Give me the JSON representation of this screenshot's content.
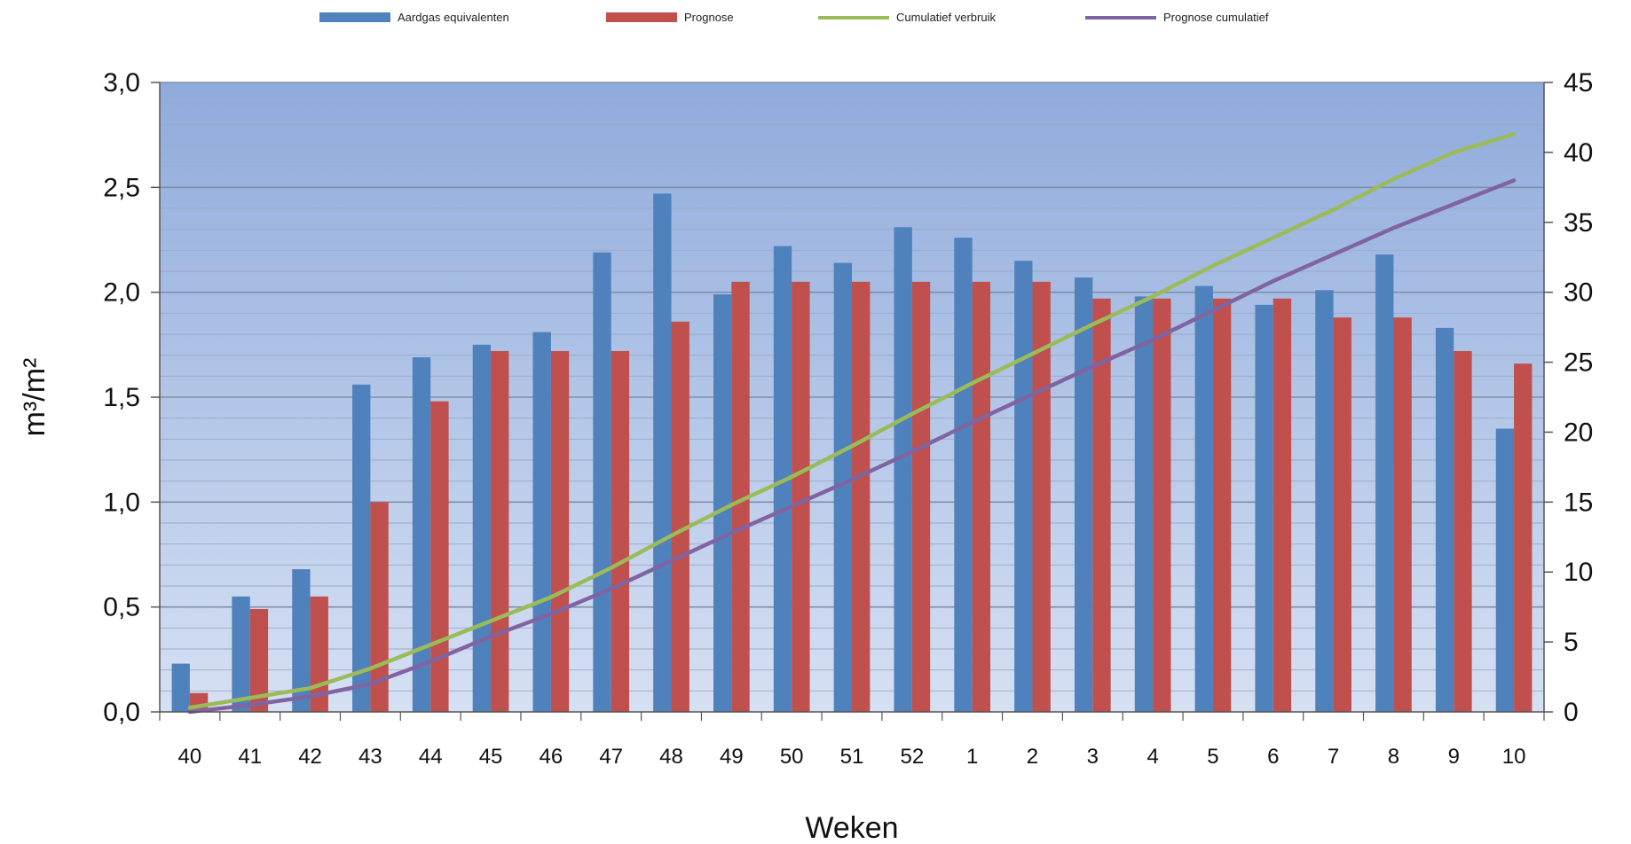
{
  "chart_data": {
    "type": "bar",
    "categories": [
      "40",
      "41",
      "42",
      "43",
      "44",
      "45",
      "46",
      "47",
      "48",
      "49",
      "50",
      "51",
      "52",
      "1",
      "2",
      "3",
      "4",
      "5",
      "6",
      "7",
      "8",
      "9",
      "10"
    ],
    "series": [
      {
        "name": "Aardgas equivalenten",
        "kind": "bar",
        "axis": "left",
        "color": "#4f81bd",
        "values": [
          0.23,
          0.55,
          0.68,
          1.56,
          1.69,
          1.75,
          1.81,
          2.19,
          2.47,
          1.99,
          2.22,
          2.14,
          2.31,
          2.26,
          2.15,
          2.07,
          1.98,
          2.03,
          1.94,
          2.01,
          2.18,
          1.83,
          1.35
        ]
      },
      {
        "name": "Prognose",
        "kind": "bar",
        "axis": "left",
        "color": "#c0504d",
        "values": [
          0.09,
          0.49,
          0.55,
          1.0,
          1.48,
          1.72,
          1.72,
          1.72,
          1.86,
          2.05,
          2.05,
          2.05,
          2.05,
          2.05,
          2.05,
          1.97,
          1.97,
          1.97,
          1.97,
          1.88,
          1.88,
          1.72,
          1.66
        ]
      },
      {
        "name": "Cumulatief verbruik",
        "kind": "line",
        "axis": "right",
        "color": "#9bbb59",
        "values": [
          0.3,
          1.0,
          1.7,
          3.1,
          4.8,
          6.5,
          8.2,
          10.3,
          12.6,
          14.8,
          16.8,
          19.0,
          21.3,
          23.5,
          25.6,
          27.7,
          29.7,
          31.9,
          33.9,
          35.9,
          38.1,
          40.0,
          41.3
        ]
      },
      {
        "name": "Prognose cumulatief",
        "kind": "line",
        "axis": "right",
        "color": "#8064a2",
        "values": [
          0.0,
          0.5,
          1.1,
          2.0,
          3.6,
          5.4,
          7.0,
          8.8,
          10.8,
          12.8,
          14.7,
          16.6,
          18.6,
          20.7,
          22.7,
          24.7,
          26.6,
          28.7,
          30.8,
          32.7,
          34.6,
          36.3,
          38.0
        ]
      }
    ],
    "title": "",
    "xlabel": "Weken",
    "ylabel": "m³/m²",
    "ylim": [
      0,
      3.0
    ],
    "y2lim": [
      0,
      45
    ],
    "yticks": [
      "0,0",
      "0,5",
      "1,0",
      "1,5",
      "2,0",
      "2,5",
      "3,0"
    ],
    "y2ticks": [
      "0",
      "5",
      "10",
      "15",
      "20",
      "25",
      "30",
      "35",
      "40",
      "45"
    ],
    "grid": true,
    "legend": "top-center",
    "plot_background": "#a9bfe6"
  }
}
